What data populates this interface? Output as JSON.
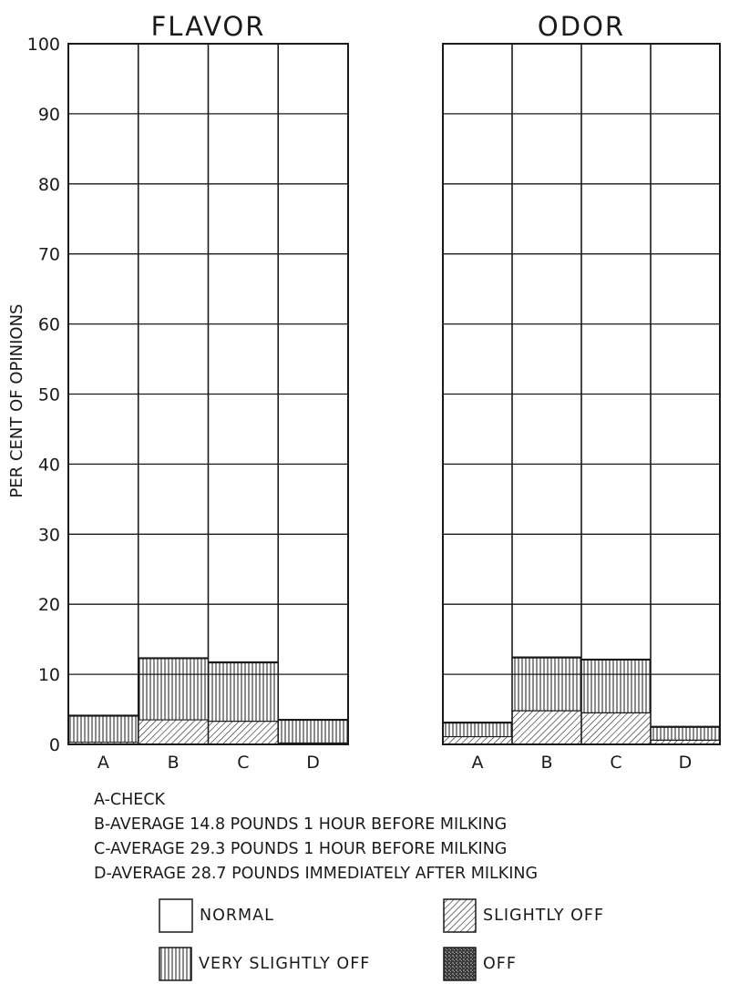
{
  "chart_data": {
    "type": "bar",
    "stacked": true,
    "ylabel": "PER CENT OF OPINIONS",
    "ylim": [
      0,
      100
    ],
    "yticks": [
      "0",
      "10",
      "20",
      "30",
      "40",
      "50",
      "60",
      "70",
      "80",
      "90",
      "100"
    ],
    "grid": true,
    "panels": [
      {
        "title": "FLAVOR",
        "categories": [
          "A",
          "B",
          "C",
          "D"
        ],
        "series": [
          {
            "name": "SLIGHTLY OFF",
            "values": [
              0.3,
              3.5,
              3.3,
              0.2
            ]
          },
          {
            "name": "VERY SLIGHTLY OFF",
            "values": [
              3.8,
              8.8,
              8.4,
              3.3
            ]
          }
        ]
      },
      {
        "title": "ODOR",
        "categories": [
          "A",
          "B",
          "C",
          "D"
        ],
        "series": [
          {
            "name": "SLIGHTLY OFF",
            "values": [
              1.1,
              4.8,
              4.5,
              0.6
            ]
          },
          {
            "name": "VERY SLIGHTLY OFF",
            "values": [
              2.0,
              7.6,
              7.6,
              1.9
            ]
          }
        ]
      }
    ],
    "category_key": [
      "A-CHECK",
      "B-AVERAGE 14.8  POUNDS 1 HOUR  BEFORE MILKING",
      "C-AVERAGE 29.3  POUNDS 1 HOUR   BEFORE MILKING",
      "D-AVERAGE 28.7  POUNDS  IMMEDIATELY  AFTER MILKING"
    ],
    "legend": [
      {
        "label": "NORMAL",
        "pattern": "blank"
      },
      {
        "label": "SLIGHTLY OFF",
        "pattern": "diagonal"
      },
      {
        "label": "VERY SLIGHTLY OFF",
        "pattern": "vertical"
      },
      {
        "label": "OFF",
        "pattern": "dark"
      }
    ],
    "legend_placement": "bottom",
    "colors": {
      "ink": "#1a1a1a",
      "background": "#ffffff"
    }
  }
}
